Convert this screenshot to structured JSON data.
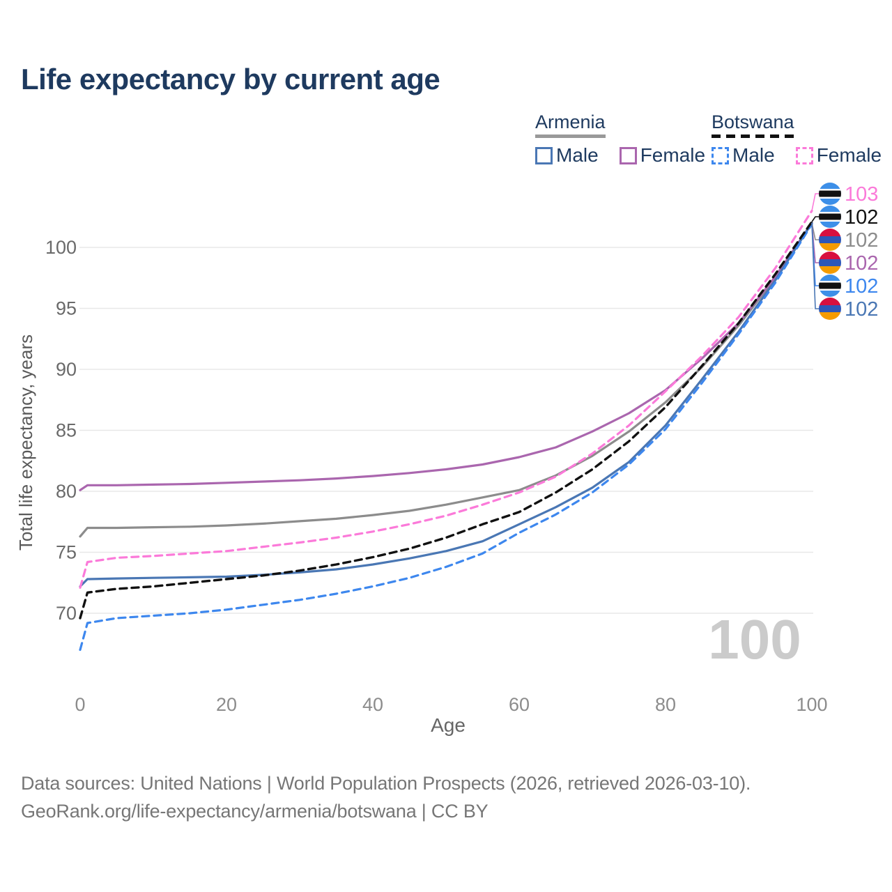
{
  "title": "Life expectancy by current age",
  "legend": {
    "groups": [
      {
        "label": "Armenia",
        "line_style": "solid",
        "rule_color": "#999999",
        "items": [
          {
            "label": "Male",
            "color": "#4a77b4",
            "dashed": false
          },
          {
            "label": "Female",
            "color": "#aa66ae",
            "dashed": false
          }
        ]
      },
      {
        "label": "Botswana",
        "line_style": "dashed",
        "rule_color": "#111111",
        "items": [
          {
            "label": "Male",
            "color": "#3d87ee",
            "dashed": true
          },
          {
            "label": "Female",
            "color": "#fb7ad9",
            "dashed": true
          }
        ]
      }
    ]
  },
  "chart_data": {
    "type": "line",
    "title": "Life expectancy by current age",
    "xlabel": "Age",
    "ylabel": "Total life expectancy, years",
    "xlim": [
      0,
      100
    ],
    "ylim": [
      66,
      104
    ],
    "x_ticks": [
      0,
      20,
      40,
      60,
      80,
      100
    ],
    "y_ticks": [
      70,
      75,
      80,
      85,
      90,
      95,
      100
    ],
    "grid": true,
    "legend_position": "top-right",
    "watermark": "100",
    "x": [
      0,
      1,
      5,
      10,
      15,
      20,
      25,
      30,
      35,
      40,
      45,
      50,
      55,
      60,
      65,
      70,
      75,
      80,
      85,
      90,
      95,
      100
    ],
    "series": [
      {
        "name": "Armenia",
        "country": "armenia",
        "sex": "all",
        "color": "#8c8c8c",
        "dash": "solid",
        "end_value": 102,
        "values": [
          76.3,
          77.0,
          77.0,
          77.05,
          77.1,
          77.2,
          77.35,
          77.55,
          77.75,
          78.05,
          78.4,
          78.9,
          79.5,
          80.1,
          81.3,
          82.9,
          84.9,
          87.3,
          90.2,
          93.6,
          97.5,
          102
        ]
      },
      {
        "name": "Armenia Female",
        "country": "armenia",
        "sex": "female",
        "color": "#aa66ae",
        "dash": "solid",
        "end_value": 102,
        "values": [
          80.1,
          80.5,
          80.5,
          80.55,
          80.6,
          80.7,
          80.8,
          80.9,
          81.05,
          81.25,
          81.5,
          81.8,
          82.2,
          82.8,
          83.6,
          84.9,
          86.4,
          88.3,
          90.9,
          93.8,
          97.6,
          102
        ]
      },
      {
        "name": "Armenia Male",
        "country": "armenia",
        "sex": "male",
        "color": "#4a77b4",
        "dash": "solid",
        "end_value": 102,
        "values": [
          72.2,
          72.8,
          72.85,
          72.9,
          72.95,
          73.0,
          73.15,
          73.35,
          73.6,
          74.0,
          74.5,
          75.1,
          75.9,
          77.3,
          78.7,
          80.3,
          82.4,
          85.4,
          89.2,
          93.1,
          97.3,
          102
        ]
      },
      {
        "name": "Botswana Male",
        "country": "botswana",
        "sex": "male",
        "color": "#3d87ee",
        "dash": "dashed",
        "end_value": 102,
        "values": [
          67.0,
          69.2,
          69.6,
          69.8,
          70.0,
          70.3,
          70.7,
          71.1,
          71.6,
          72.2,
          72.9,
          73.8,
          74.9,
          76.6,
          78.1,
          79.9,
          82.2,
          85.1,
          88.9,
          92.9,
          97.1,
          101.9
        ]
      },
      {
        "name": "Botswana",
        "country": "botswana",
        "sex": "all",
        "color": "#111111",
        "dash": "dashed",
        "end_value": 102,
        "values": [
          69.6,
          71.7,
          72.0,
          72.2,
          72.5,
          72.8,
          73.1,
          73.5,
          74.0,
          74.6,
          75.3,
          76.2,
          77.3,
          78.3,
          79.9,
          81.8,
          84.1,
          86.9,
          90.3,
          93.8,
          97.8,
          102.1
        ]
      },
      {
        "name": "Botswana Female",
        "country": "botswana",
        "sex": "female",
        "color": "#fb7ad9",
        "dash": "dashed",
        "end_value": 103,
        "values": [
          72.1,
          74.2,
          74.55,
          74.7,
          74.9,
          75.1,
          75.45,
          75.8,
          76.2,
          76.7,
          77.3,
          78.0,
          78.9,
          79.9,
          81.2,
          83.1,
          85.4,
          88.2,
          91.1,
          94.3,
          98.3,
          103
        ]
      }
    ],
    "end_labels": [
      {
        "value": "103",
        "series": "Botswana Female",
        "flag": "botswana"
      },
      {
        "value": "102",
        "series": "Botswana",
        "flag": "botswana"
      },
      {
        "value": "102",
        "series": "Armenia",
        "flag": "armenia"
      },
      {
        "value": "102",
        "series": "Armenia Female",
        "flag": "armenia"
      },
      {
        "value": "102",
        "series": "Botswana Male",
        "flag": "botswana"
      },
      {
        "value": "102",
        "series": "Armenia Male",
        "flag": "armenia"
      }
    ],
    "flag_colors": {
      "armenia": [
        "#d8103f",
        "#2e57b8",
        "#f59b00"
      ],
      "botswana": {
        "base": "#3d8fe8",
        "stripe_outer": "#ffffff",
        "stripe_inner": "#111111"
      }
    },
    "axis_colors": {
      "y_tick": "#6a6a6a",
      "x_tick": "#8c8c8c",
      "axis_title": "#666666",
      "grid": "#e8e8e8",
      "watermark": "#cbcbcb"
    }
  },
  "footer": {
    "line1": "Data sources: United Nations | World Population Prospects (2026, retrieved 2026-03-10).",
    "line2": "GeoRank.org/life-expectancy/armenia/botswana | CC BY"
  }
}
